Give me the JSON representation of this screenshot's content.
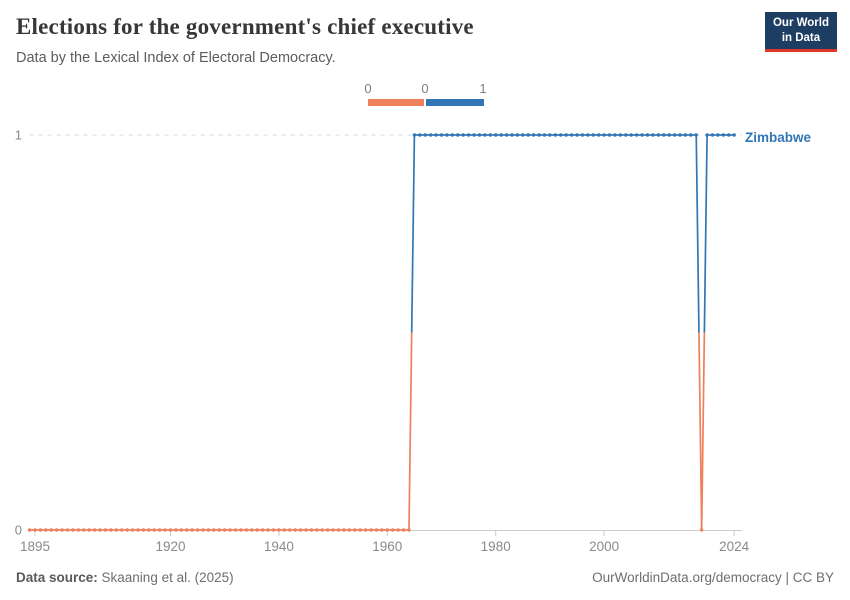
{
  "header": {
    "title": "Elections for the government's chief executive",
    "subtitle": "Data by the Lexical Index of Electoral Democracy.",
    "logo": {
      "line1": "Our World",
      "line2": "in Data"
    }
  },
  "legend": {
    "labels": [
      "0",
      "0",
      "1"
    ],
    "segments": [
      {
        "value": 0,
        "color": "#EE805B"
      },
      {
        "value": 1,
        "color": "#3276B5"
      }
    ]
  },
  "chart_data": {
    "type": "line",
    "title": "Elections for the government's chief executive",
    "subtitle": "Data by the Lexical Index of Electoral Democracy.",
    "legend_position": "top-center",
    "grid": "dashed line at y=1 only",
    "x": {
      "min": 1894,
      "max": 2024,
      "ticks": [
        1895,
        1920,
        1940,
        1960,
        1980,
        2000,
        2024
      ]
    },
    "y": {
      "min": 0,
      "max": 1,
      "ticks": [
        0,
        1
      ]
    },
    "value_colors": {
      "0": "#EE805B",
      "1": "#3276B5"
    },
    "series": [
      {
        "name": "Zimbabwe",
        "color": "#3276B5",
        "runs": [
          [
            1894,
            1964,
            0
          ],
          [
            1965,
            2017,
            1
          ],
          [
            2018,
            2018,
            0
          ],
          [
            2019,
            2024,
            1
          ]
        ]
      }
    ]
  },
  "footer": {
    "source_label": "Data source:",
    "source_text": " Skaaning et al. (2025)",
    "credit": "OurWorldinData.org/democracy | CC BY"
  }
}
